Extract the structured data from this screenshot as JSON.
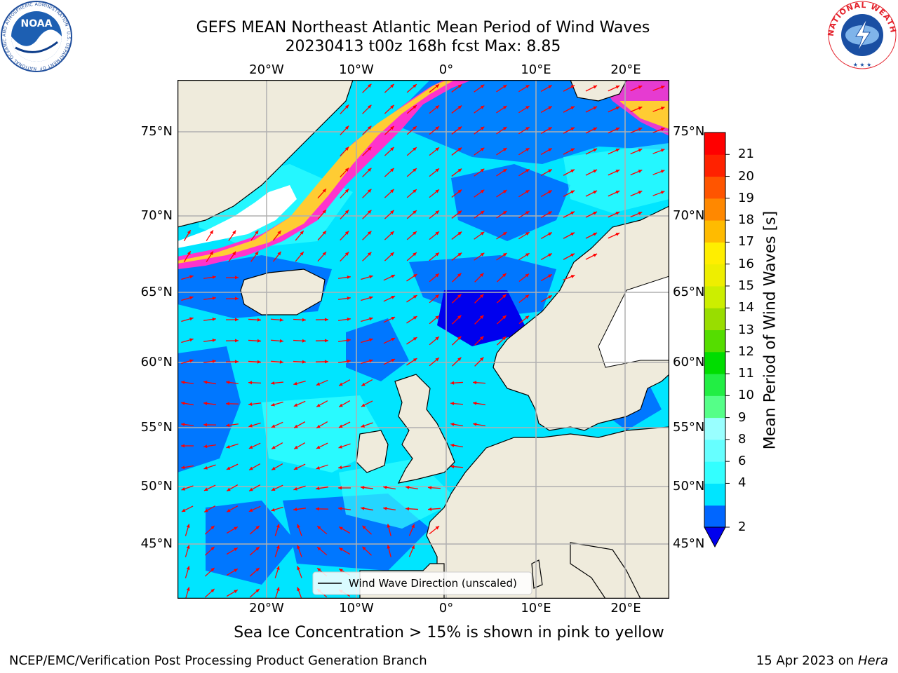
{
  "title": {
    "line1": "GEFS MEAN Northeast Atlantic Mean Period of Wind Waves",
    "line2": "20230413 t00z 168h fcst   Max: 8.85"
  },
  "map": {
    "lon_ticks": [
      "20°W",
      "10°W",
      "0°",
      "10°E",
      "20°E"
    ],
    "lat_ticks": [
      "75°N",
      "70°N",
      "65°N",
      "60°N",
      "55°N",
      "50°N",
      "45°N"
    ],
    "legend_label": "Wind Wave Direction (unscaled)",
    "arrow_color": "#ff0000",
    "land_color": "#efebdc",
    "grid_color": "#b0b0b0"
  },
  "colorbar": {
    "label": "Mean Period of Wind Waves [s]",
    "ticks": [
      "2",
      "4",
      "6",
      "8",
      "9",
      "10",
      "11",
      "12",
      "13",
      "14",
      "15",
      "16",
      "17",
      "18",
      "19",
      "20",
      "21"
    ],
    "colors": [
      "#0066ff",
      "#00e5ff",
      "#33ffff",
      "#66ffff",
      "#99ffff",
      "#55ff88",
      "#22ee44",
      "#00dd00",
      "#55dd00",
      "#99dd00",
      "#ccee00",
      "#eeee00",
      "#ffee00",
      "#ffbb00",
      "#ff8800",
      "#ff5500",
      "#ff2200",
      "#ff0000"
    ],
    "under_color": "#0000ee"
  },
  "footnote": "Sea Ice Concentration > 15% is shown in pink to yellow",
  "footer": {
    "left": "NCEP/EMC/Verification Post Processing Product Generation Branch",
    "right_date": "15 Apr 2023 on ",
    "right_machine": "Hera"
  },
  "logos": {
    "noaa_text": "NOAA",
    "noaa_ring": "NATIONAL OCEANIC AND ATMOSPHERIC ADMINISTRATION · U.S. DEPARTMENT OF COMMERCE",
    "nws_ring": "NATIONAL WEATHER SERVICE"
  }
}
